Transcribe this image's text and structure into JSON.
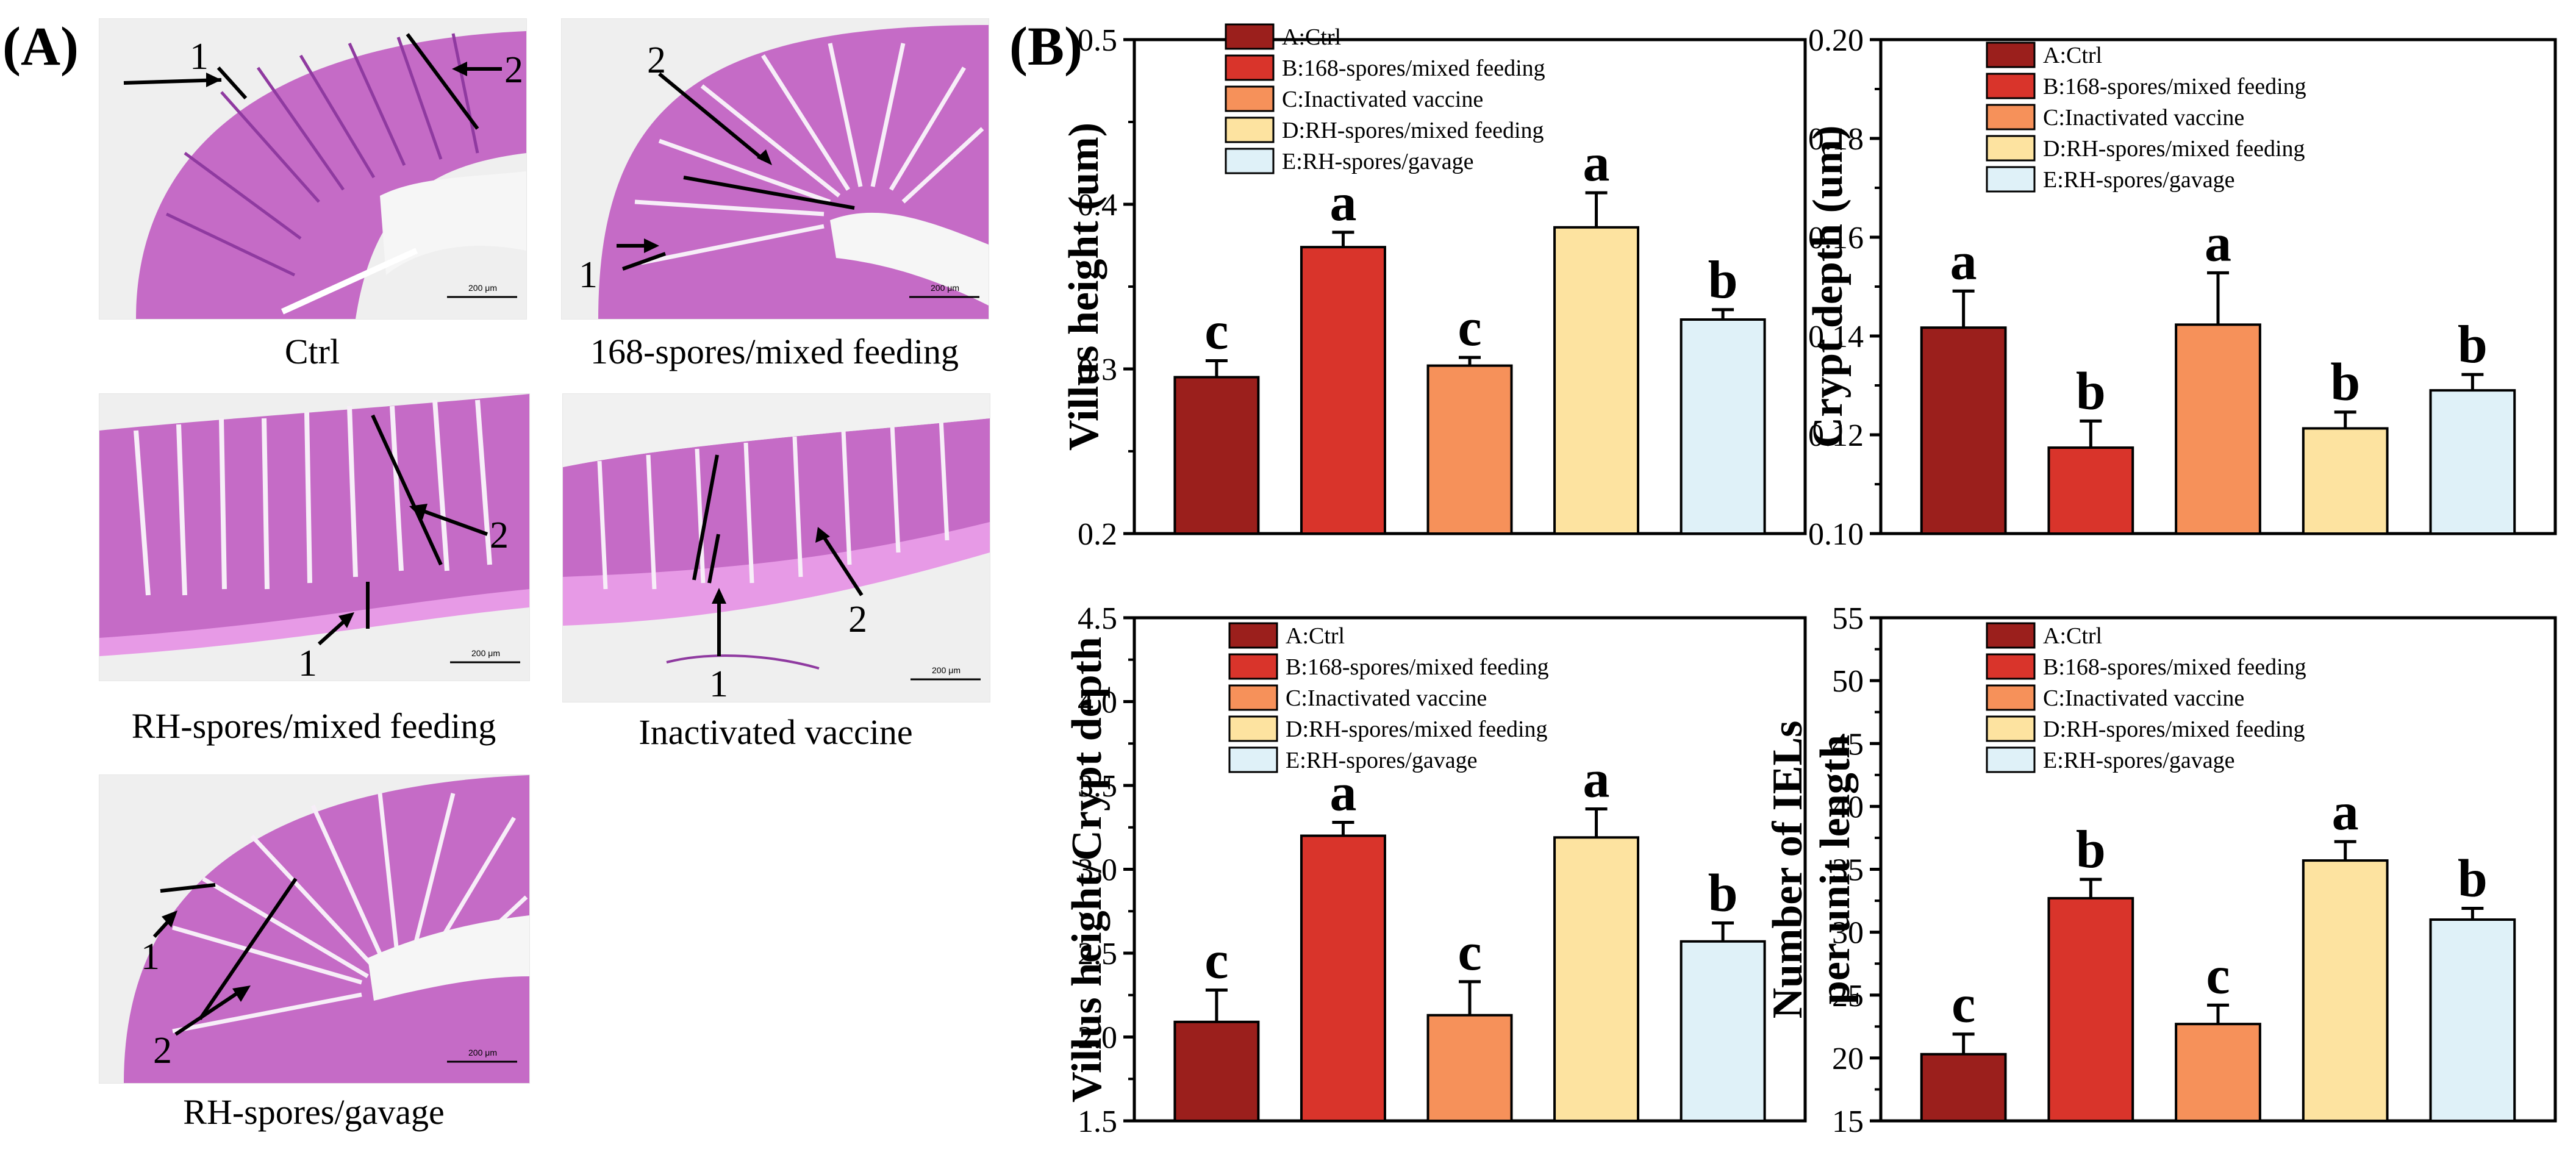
{
  "panel_labels": {
    "a": "(A)",
    "b": "(B)"
  },
  "micrographs": [
    {
      "caption": "Ctrl",
      "scale_text": "200 μm",
      "markers": [
        "1",
        "2"
      ]
    },
    {
      "caption": "168-spores/mixed feeding",
      "scale_text": "200 μm",
      "markers": [
        "1",
        "2"
      ]
    },
    {
      "caption": "RH-spores/mixed feeding",
      "scale_text": "200 μm",
      "markers": [
        "1",
        "2"
      ]
    },
    {
      "caption": "Inactivated vaccine",
      "scale_text": "200 μm",
      "markers": [
        "1",
        "2"
      ]
    },
    {
      "caption": "RH-spores/gavage",
      "scale_text": "200 μm",
      "markers": [
        "1",
        "2"
      ]
    }
  ],
  "colors": {
    "A": "#9b1f1c",
    "B": "#d9342b",
    "C": "#f6915a",
    "D": "#fde3a0",
    "E": "#dff1f8",
    "tissue": "#c56bc6",
    "tissue_dark": "#8f3aa0",
    "slide_bg": "#efefef"
  },
  "legend_entries": [
    "A:Ctrl",
    "B:168-spores/mixed feeding",
    "C:Inactivated vaccine",
    "D:RH-spores/mixed feeding",
    "E:RH-spores/gavage"
  ],
  "chart_data": [
    {
      "type": "bar",
      "categories": [
        "A",
        "B",
        "C",
        "D",
        "E"
      ],
      "values": [
        0.295,
        0.374,
        0.302,
        0.386,
        0.33
      ],
      "errors": [
        0.01,
        0.009,
        0.005,
        0.021,
        0.006
      ],
      "significance": [
        "c",
        "a",
        "c",
        "a",
        "b"
      ],
      "ylabel": "Villus height (um)",
      "ylim": [
        0.2,
        0.5
      ],
      "yticks": [
        "0.2",
        "0.3",
        "0.4",
        "0.5"
      ],
      "legend": "top-left"
    },
    {
      "type": "bar",
      "categories": [
        "A",
        "B",
        "C",
        "D",
        "E"
      ],
      "values": [
        0.1417,
        0.1174,
        0.1423,
        0.1213,
        0.129
      ],
      "errors": [
        0.0074,
        0.0054,
        0.0105,
        0.0033,
        0.0032
      ],
      "significance": [
        "a",
        "b",
        "a",
        "b",
        "b"
      ],
      "ylabel": "Crypt depth (um)",
      "ylim": [
        0.1,
        0.2
      ],
      "yticks": [
        "0.10",
        "0.12",
        "0.14",
        "0.16",
        "0.18",
        "0.20"
      ],
      "legend": "top-left"
    },
    {
      "type": "bar",
      "categories": [
        "A",
        "B",
        "C",
        "D",
        "E"
      ],
      "values": [
        2.09,
        3.2,
        2.13,
        3.19,
        2.57
      ],
      "errors": [
        0.19,
        0.08,
        0.2,
        0.17,
        0.11
      ],
      "significance": [
        "c",
        "a",
        "c",
        "a",
        "b"
      ],
      "ylabel": "Villus height/Crypt depth",
      "ylim": [
        1.5,
        4.5
      ],
      "yticks": [
        "1.5",
        "2.0",
        "2.5",
        "3.0",
        "3.5",
        "4.0",
        "4.5"
      ],
      "legend": "top-left"
    },
    {
      "type": "bar",
      "categories": [
        "A",
        "B",
        "C",
        "D",
        "E"
      ],
      "values": [
        20.3,
        32.7,
        22.7,
        35.7,
        31.0
      ],
      "errors": [
        1.6,
        1.5,
        1.5,
        1.5,
        0.9
      ],
      "significance": [
        "c",
        "b",
        "c",
        "a",
        "b"
      ],
      "ylabel": [
        "Number of IELs",
        "per unit length"
      ],
      "ylim": [
        15,
        55
      ],
      "yticks": [
        "15",
        "20",
        "25",
        "30",
        "35",
        "40",
        "45",
        "50",
        "55"
      ],
      "legend": "top-left"
    }
  ]
}
